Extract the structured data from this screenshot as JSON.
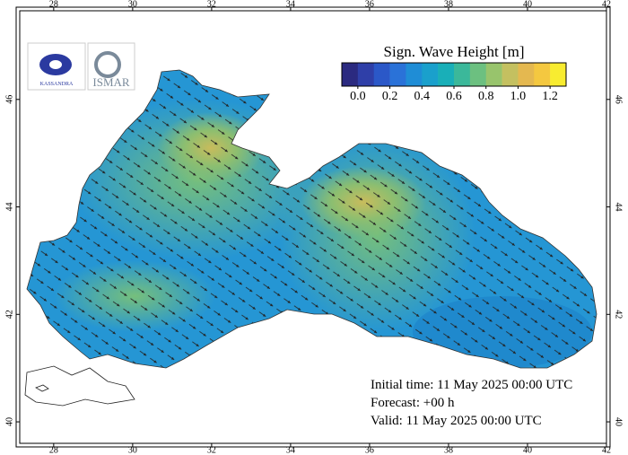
{
  "map": {
    "title": "Sign. Wave Height [m]",
    "xlim": [
      27.14,
      42
    ],
    "ylim": [
      39.6,
      47.65
    ],
    "xticks": [
      28,
      30,
      32,
      34,
      36,
      38,
      40,
      42
    ],
    "yticks": [
      40,
      42,
      44,
      46
    ],
    "colorbar": {
      "lim": [
        -0.1,
        1.3
      ],
      "colors": [
        "#2b2a80",
        "#2f3fa8",
        "#2b58c8",
        "#2a72d8",
        "#1f8dd6",
        "#1aa0cc",
        "#19afb8",
        "#3bb89a",
        "#6cc080",
        "#98c46c",
        "#c4c060",
        "#e4b850",
        "#f4c840",
        "#f8ec30"
      ],
      "ticks": [
        {
          "value": 0,
          "label": "0.0"
        },
        0.2,
        0.4,
        0.6,
        0.8,
        {
          "value": 1,
          "label": "1.0"
        },
        1.2
      ]
    },
    "logos": [
      "KASSANDRA",
      "ISMAR"
    ],
    "info": [
      "Initial time: 11 May 2025 00:00 UTC",
      "Forecast: +00 h",
      "Valid: 11 May 2025 00:00 UTC"
    ]
  }
}
